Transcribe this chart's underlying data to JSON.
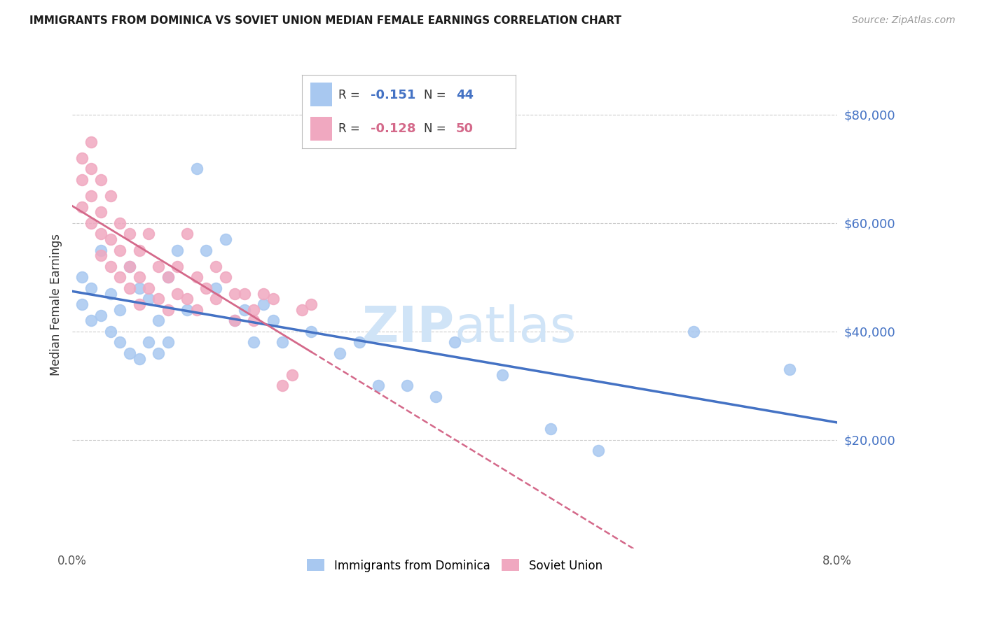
{
  "title": "IMMIGRANTS FROM DOMINICA VS SOVIET UNION MEDIAN FEMALE EARNINGS CORRELATION CHART",
  "source": "Source: ZipAtlas.com",
  "ylabel": "Median Female Earnings",
  "x_min": 0.0,
  "x_max": 0.08,
  "y_min": 0,
  "y_max": 90000,
  "x_ticks": [
    0.0,
    0.01,
    0.02,
    0.03,
    0.04,
    0.05,
    0.06,
    0.07,
    0.08
  ],
  "x_tick_labels": [
    "0.0%",
    "",
    "",
    "",
    "",
    "",
    "",
    "",
    "8.0%"
  ],
  "y_tick_labels": [
    "$80,000",
    "$60,000",
    "$40,000",
    "$20,000"
  ],
  "y_ticks": [
    80000,
    60000,
    40000,
    20000
  ],
  "dominica_color": "#a8c8f0",
  "soviet_color": "#f0a8c0",
  "dominica_line_color": "#4472c4",
  "soviet_line_color": "#d4698a",
  "watermark_color": "#d0e4f7",
  "legend_r_dominica": "-0.151",
  "legend_n_dominica": "44",
  "legend_r_soviet": "-0.128",
  "legend_n_soviet": "50",
  "dominica_x": [
    0.001,
    0.001,
    0.002,
    0.002,
    0.003,
    0.003,
    0.004,
    0.004,
    0.005,
    0.005,
    0.006,
    0.006,
    0.007,
    0.007,
    0.008,
    0.008,
    0.009,
    0.009,
    0.01,
    0.01,
    0.011,
    0.012,
    0.013,
    0.014,
    0.015,
    0.016,
    0.017,
    0.018,
    0.019,
    0.02,
    0.021,
    0.022,
    0.025,
    0.028,
    0.03,
    0.032,
    0.035,
    0.038,
    0.04,
    0.045,
    0.05,
    0.055,
    0.065,
    0.075
  ],
  "dominica_y": [
    50000,
    45000,
    42000,
    48000,
    55000,
    43000,
    47000,
    40000,
    44000,
    38000,
    52000,
    36000,
    48000,
    35000,
    46000,
    38000,
    42000,
    36000,
    50000,
    38000,
    55000,
    44000,
    70000,
    55000,
    48000,
    57000,
    42000,
    44000,
    38000,
    45000,
    42000,
    38000,
    40000,
    36000,
    38000,
    30000,
    30000,
    28000,
    38000,
    32000,
    22000,
    18000,
    40000,
    33000
  ],
  "soviet_x": [
    0.001,
    0.001,
    0.001,
    0.002,
    0.002,
    0.002,
    0.002,
    0.003,
    0.003,
    0.003,
    0.003,
    0.004,
    0.004,
    0.004,
    0.005,
    0.005,
    0.005,
    0.006,
    0.006,
    0.006,
    0.007,
    0.007,
    0.007,
    0.008,
    0.008,
    0.009,
    0.009,
    0.01,
    0.01,
    0.011,
    0.011,
    0.012,
    0.012,
    0.013,
    0.013,
    0.014,
    0.015,
    0.015,
    0.016,
    0.017,
    0.017,
    0.018,
    0.019,
    0.019,
    0.02,
    0.021,
    0.022,
    0.023,
    0.024,
    0.025
  ],
  "soviet_y": [
    72000,
    68000,
    63000,
    75000,
    70000,
    65000,
    60000,
    68000,
    62000,
    58000,
    54000,
    65000,
    57000,
    52000,
    60000,
    55000,
    50000,
    58000,
    52000,
    48000,
    55000,
    50000,
    45000,
    58000,
    48000,
    52000,
    46000,
    50000,
    44000,
    52000,
    47000,
    58000,
    46000,
    50000,
    44000,
    48000,
    52000,
    46000,
    50000,
    47000,
    42000,
    47000,
    44000,
    42000,
    47000,
    46000,
    30000,
    32000,
    44000,
    45000
  ]
}
